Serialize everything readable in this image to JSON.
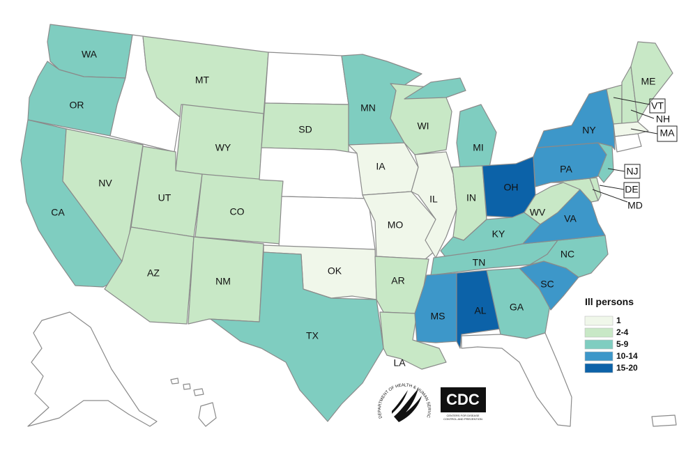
{
  "colors": {
    "c1": "#f0f7ea",
    "c2_4": "#c8e8c6",
    "c5_9": "#7fcdc0",
    "c10_14": "#3d97c9",
    "c15_20": "#0c62a8",
    "none": "#ffffff"
  },
  "legend": {
    "title": "Ill persons",
    "items": [
      {
        "label": "1",
        "color": "#f0f7ea"
      },
      {
        "label": "2-4",
        "color": "#c8e8c6"
      },
      {
        "label": "5-9",
        "color": "#7fcdc0"
      },
      {
        "label": "10-14",
        "color": "#3d97c9"
      },
      {
        "label": "15-20",
        "color": "#0c62a8"
      }
    ]
  },
  "states": {
    "WA": "5-9",
    "OR": "5-9",
    "CA": "5-9",
    "NV": "2-4",
    "MT": "2-4",
    "WY": "2-4",
    "UT": "2-4",
    "CO": "2-4",
    "AZ": "2-4",
    "NM": "2-4",
    "SD": "2-4",
    "MN": "5-9",
    "WI": "2-4",
    "MI": "5-9",
    "IA": "1",
    "IL": "1",
    "MO": "1",
    "OK": "1",
    "TX": "5-9",
    "AR": "2-4",
    "LA": "2-4",
    "MS": "10-14",
    "AL": "15-20",
    "TN": "5-9",
    "KY": "5-9",
    "IN": "2-4",
    "OH": "15-20",
    "GA": "5-9",
    "SC": "10-14",
    "NC": "5-9",
    "VA": "10-14",
    "WV": "2-4",
    "PA": "10-14",
    "NY": "10-14",
    "NJ": "5-9",
    "DE": "2-4",
    "MD": "2-4",
    "ME": "2-4",
    "VT": "2-4",
    "NH": "2-4",
    "MA": "1",
    "FL": "none",
    "ND": "none",
    "NE": "none",
    "KS": "none",
    "ID": "none",
    "AK": "none",
    "HI": "none",
    "PR": "none"
  },
  "labels": {
    "WA": "WA",
    "OR": "OR",
    "CA": "CA",
    "NV": "NV",
    "MT": "MT",
    "WY": "WY",
    "UT": "UT",
    "CO": "CO",
    "AZ": "AZ",
    "NM": "NM",
    "SD": "SD",
    "MN": "MN",
    "WI": "WI",
    "MI": "MI",
    "IA": "IA",
    "IL": "IL",
    "MO": "MO",
    "OK": "OK",
    "TX": "TX",
    "AR": "AR",
    "LA": "LA",
    "MS": "MS",
    "AL": "AL",
    "TN": "TN",
    "KY": "KY",
    "IN": "IN",
    "OH": "OH",
    "GA": "GA",
    "SC": "SC",
    "NC": "NC",
    "VA": "VA",
    "WV": "WV",
    "PA": "PA",
    "NY": "NY",
    "NJ": "NJ",
    "DE": "DE",
    "MD": "MD",
    "ME": "ME",
    "VT": "VT",
    "NH": "NH",
    "MA": "MA"
  },
  "logos": {
    "cdc": "CDC",
    "cdc_sub1": "CENTERS FOR DISEASE",
    "cdc_sub2": "CONTROL AND PREVENTION",
    "hhs_ring": "DEPARTMENT OF HEALTH & HUMAN SERVICES USA"
  }
}
